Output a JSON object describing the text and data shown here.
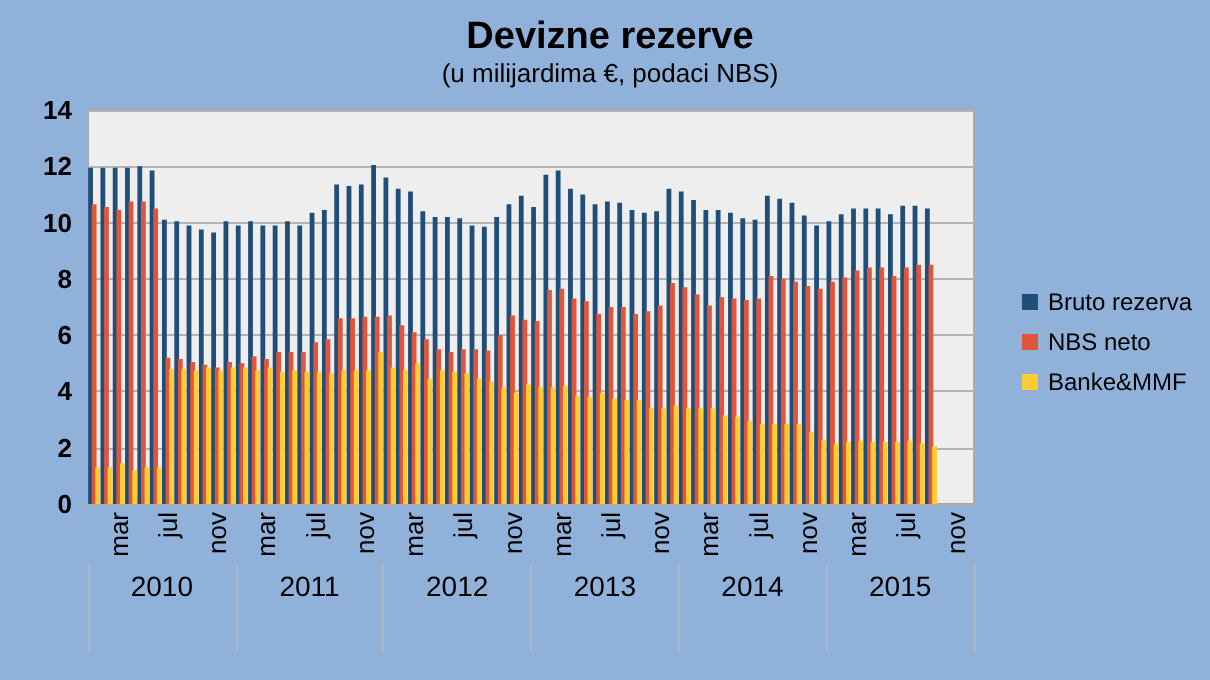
{
  "chart_data": {
    "type": "bar",
    "title": "Devizne rezerve",
    "subtitle": "(u milijardima €, podaci NBS)",
    "categories": [
      null,
      null,
      "mar",
      null,
      null,
      null,
      "jul",
      null,
      null,
      null,
      "nov",
      null,
      null,
      null,
      "mar",
      null,
      null,
      null,
      "jul",
      null,
      null,
      null,
      "nov",
      null,
      null,
      null,
      "mar",
      null,
      null,
      null,
      "jul",
      null,
      null,
      null,
      "nov",
      null,
      null,
      null,
      "mar",
      null,
      null,
      null,
      "jul",
      null,
      null,
      null,
      "nov",
      null,
      null,
      null,
      "mar",
      null,
      null,
      null,
      "jul",
      null,
      null,
      null,
      "nov",
      null,
      null,
      null,
      "mar",
      null,
      null,
      null,
      "jul",
      null,
      null,
      null,
      "nov",
      null
    ],
    "series": [
      {
        "name": "Bruto rezerva",
        "color": "#1f4e79",
        "values": [
          11.95,
          11.95,
          11.95,
          11.95,
          12.0,
          11.85,
          10.1,
          10.05,
          9.9,
          9.75,
          9.65,
          10.05,
          9.9,
          10.05,
          9.9,
          9.9,
          10.05,
          9.9,
          10.35,
          10.45,
          11.35,
          11.3,
          11.35,
          12.05,
          11.6,
          11.2,
          11.1,
          10.4,
          10.2,
          10.2,
          10.15,
          9.9,
          9.85,
          10.2,
          10.65,
          10.95,
          10.55,
          11.7,
          11.85,
          11.2,
          11.0,
          10.65,
          10.75,
          10.7,
          10.45,
          10.35,
          10.4,
          11.2,
          11.1,
          10.8,
          10.45,
          10.45,
          10.35,
          10.15,
          10.1,
          10.95,
          10.85,
          10.7,
          10.25,
          9.9,
          10.05,
          10.3,
          10.5,
          10.5,
          10.5,
          10.3,
          10.6,
          10.6,
          10.5,
          null,
          null,
          null
        ]
      },
      {
        "name": "NBS neto",
        "color": "#e0563a",
        "values": [
          10.65,
          10.55,
          10.45,
          10.75,
          10.75,
          10.5,
          5.2,
          5.15,
          5.05,
          4.95,
          4.85,
          5.05,
          5.0,
          5.25,
          5.15,
          5.4,
          5.4,
          5.4,
          5.75,
          5.85,
          6.6,
          6.6,
          6.65,
          6.65,
          6.7,
          6.35,
          6.1,
          5.85,
          5.5,
          5.4,
          5.5,
          5.5,
          5.45,
          6.0,
          6.7,
          6.55,
          6.5,
          7.6,
          7.65,
          7.3,
          7.2,
          6.75,
          7.0,
          7.0,
          6.75,
          6.85,
          7.05,
          7.85,
          7.7,
          7.45,
          7.05,
          7.35,
          7.3,
          7.25,
          7.3,
          8.1,
          8.0,
          7.9,
          7.75,
          7.65,
          7.9,
          8.05,
          8.3,
          8.4,
          8.4,
          8.1,
          8.4,
          8.5,
          8.5,
          null,
          null,
          null
        ]
      },
      {
        "name": "Banke&MMF",
        "color": "#ffcc33",
        "values": [
          1.3,
          1.3,
          1.45,
          1.2,
          1.3,
          1.3,
          4.8,
          4.8,
          4.75,
          4.85,
          4.75,
          4.85,
          4.85,
          4.75,
          4.85,
          4.7,
          4.75,
          4.7,
          4.7,
          4.65,
          4.75,
          4.75,
          4.75,
          5.4,
          4.85,
          4.75,
          5.0,
          4.45,
          4.75,
          4.7,
          4.65,
          4.45,
          4.35,
          4.15,
          3.95,
          4.25,
          4.15,
          4.15,
          4.2,
          3.85,
          3.8,
          3.95,
          3.75,
          3.7,
          3.7,
          3.4,
          3.4,
          3.5,
          3.4,
          3.4,
          3.4,
          3.15,
          3.1,
          2.95,
          2.85,
          2.85,
          2.85,
          2.85,
          2.55,
          2.25,
          2.15,
          2.2,
          2.25,
          2.2,
          2.2,
          2.2,
          2.25,
          2.15,
          2.05,
          null,
          null,
          null
        ]
      }
    ],
    "annotations": [
      "2010",
      "2011",
      "2012",
      "2013",
      "2014",
      "2015"
    ],
    "ylim": [
      0,
      14
    ],
    "yticks": [
      0,
      2,
      4,
      6,
      8,
      10,
      12,
      14
    ],
    "grid": "y",
    "legend": "right"
  }
}
